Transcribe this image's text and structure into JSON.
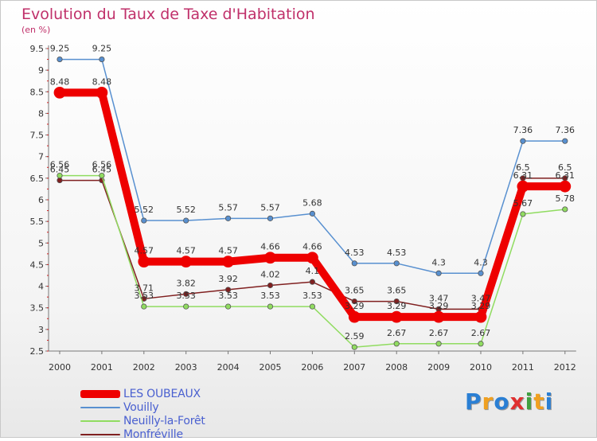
{
  "title": "Evolution du Taux de Taxe d'Habitation",
  "subtitle": "(en %)",
  "logo": {
    "text": "Proxiti",
    "colors": [
      "#2a7fd4",
      "#f0a020",
      "#2a7fd4",
      "#e03030",
      "#40a040",
      "#f0a020",
      "#2a7fd4"
    ]
  },
  "chart_data": {
    "type": "line",
    "title": "Evolution du Taux de Taxe d'Habitation",
    "ylabel": "(en %)",
    "ylim": [
      2.5,
      9.5
    ],
    "yticks": [
      "2.5",
      "3",
      "3.5",
      "4",
      "4.5",
      "5",
      "5.5",
      "6",
      "6.5",
      "7",
      "7.5",
      "8",
      "8.5",
      "9",
      "9.5"
    ],
    "grid": false,
    "legend_position": "bottom-left",
    "x": [
      "2000",
      "2001",
      "2002",
      "2003",
      "2004",
      "2005",
      "2006",
      "2007",
      "2008",
      "2009",
      "2010",
      "2011",
      "2012"
    ],
    "series": [
      {
        "name": "LES OUBEAUX",
        "color": "#ee0000",
        "width": 10,
        "values": [
          8.48,
          8.48,
          4.57,
          4.57,
          4.57,
          4.66,
          4.66,
          3.29,
          3.29,
          3.29,
          3.29,
          6.31,
          6.31
        ],
        "labels": [
          "8.48",
          "8.48",
          "4.57",
          "4.57",
          "4.57",
          "4.66",
          "4.66",
          "3.29",
          "3.29",
          "3.29",
          "3.29",
          "6.31",
          "6.31"
        ]
      },
      {
        "name": "Vouilly",
        "color": "#5890d0",
        "width": 1.5,
        "values": [
          9.25,
          9.25,
          5.52,
          5.52,
          5.57,
          5.57,
          5.68,
          4.53,
          4.53,
          4.3,
          4.3,
          7.36,
          7.36
        ],
        "labels": [
          "9.25",
          "9.25",
          "5.52",
          "5.52",
          "5.57",
          "5.57",
          "5.68",
          "4.53",
          "4.53",
          "4.3",
          "4.3",
          "7.36",
          "7.36"
        ]
      },
      {
        "name": "Neuilly-la-Forêt",
        "color": "#90dc60",
        "width": 1.5,
        "values": [
          6.56,
          6.56,
          3.53,
          3.53,
          3.53,
          3.53,
          3.53,
          2.59,
          2.67,
          2.67,
          2.67,
          5.67,
          5.78
        ],
        "labels": [
          "6.56",
          "6.56",
          "3.53",
          "3.53",
          "3.53",
          "3.53",
          "3.53",
          "2.59",
          "2.67",
          "2.67",
          "2.67",
          "5.67",
          "5.78"
        ]
      },
      {
        "name": "Monfréville",
        "color": "#802020",
        "width": 1.5,
        "values": [
          6.45,
          6.45,
          3.71,
          3.82,
          3.92,
          4.02,
          4.1,
          3.65,
          3.65,
          3.47,
          3.47,
          6.5,
          6.5
        ],
        "labels": [
          "6.45",
          "6.45",
          "3.71",
          "3.82",
          "3.92",
          "4.02",
          "4.1",
          "3.65",
          "3.65",
          "3.47",
          "3.47",
          "6.5",
          "6.5"
        ]
      }
    ]
  }
}
